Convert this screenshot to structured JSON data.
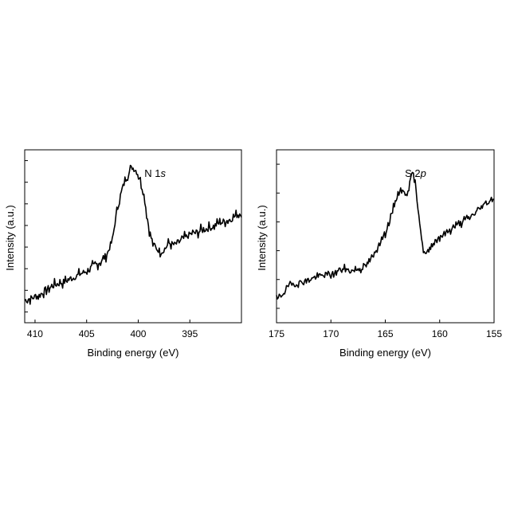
{
  "chart_data": [
    {
      "type": "line",
      "annotation": {
        "prefix": "N 1",
        "italic": "s",
        "x": 399.4
      },
      "xlabel": "Binding energy (eV)",
      "ylabel": "Intensity (a.u.)",
      "xlim": [
        411,
        390
      ],
      "ylim": [
        0,
        1
      ],
      "x_ticks": [
        410,
        405,
        400,
        395
      ],
      "y_tick_count": 8,
      "grid": false,
      "series": [
        {
          "x": [
            411.0,
            409.5,
            409.0,
            408.0,
            407.0,
            406.0,
            405.0,
            404.5,
            404.0,
            403.5,
            403.0,
            402.5,
            402.2,
            401.8,
            401.4,
            401.0,
            400.6,
            400.2,
            399.8,
            399.4,
            399.0,
            398.6,
            398.2,
            397.8,
            397.4,
            397.0,
            396.5,
            396.0,
            395.0,
            394.0,
            393.0,
            392.0,
            391.0,
            390.0
          ],
          "y": [
            0.13,
            0.16,
            0.19,
            0.22,
            0.24,
            0.27,
            0.3,
            0.32,
            0.34,
            0.36,
            0.4,
            0.48,
            0.6,
            0.72,
            0.8,
            0.86,
            0.9,
            0.88,
            0.83,
            0.72,
            0.56,
            0.45,
            0.43,
            0.41,
            0.43,
            0.46,
            0.45,
            0.47,
            0.51,
            0.53,
            0.55,
            0.58,
            0.6,
            0.64
          ]
        }
      ]
    },
    {
      "type": "line",
      "annotation": {
        "prefix": "S 2",
        "italic": "p",
        "x": 163.2
      },
      "xlabel": "Binding energy (eV)",
      "ylabel": "Intensity (a.u.)",
      "xlim": [
        175,
        155
      ],
      "ylim": [
        0,
        1
      ],
      "x_ticks": [
        175,
        170,
        165,
        160,
        155
      ],
      "y_tick_count": 6,
      "grid": false,
      "series": [
        {
          "x": [
            175.0,
            174.5,
            174.0,
            173.0,
            172.0,
            171.0,
            170.0,
            169.0,
            168.0,
            167.0,
            166.5,
            166.0,
            165.6,
            165.0,
            164.5,
            164.0,
            163.6,
            163.2,
            162.8,
            162.5,
            162.2,
            161.9,
            161.6,
            161.3,
            161.0,
            160.5,
            160.0,
            159.0,
            158.0,
            157.0,
            156.0,
            155.0
          ],
          "y": [
            0.13,
            0.16,
            0.21,
            0.23,
            0.25,
            0.27,
            0.28,
            0.31,
            0.3,
            0.32,
            0.35,
            0.39,
            0.46,
            0.52,
            0.6,
            0.72,
            0.78,
            0.74,
            0.78,
            0.88,
            0.78,
            0.62,
            0.45,
            0.39,
            0.42,
            0.47,
            0.5,
            0.54,
            0.58,
            0.62,
            0.68,
            0.72
          ]
        }
      ]
    }
  ]
}
